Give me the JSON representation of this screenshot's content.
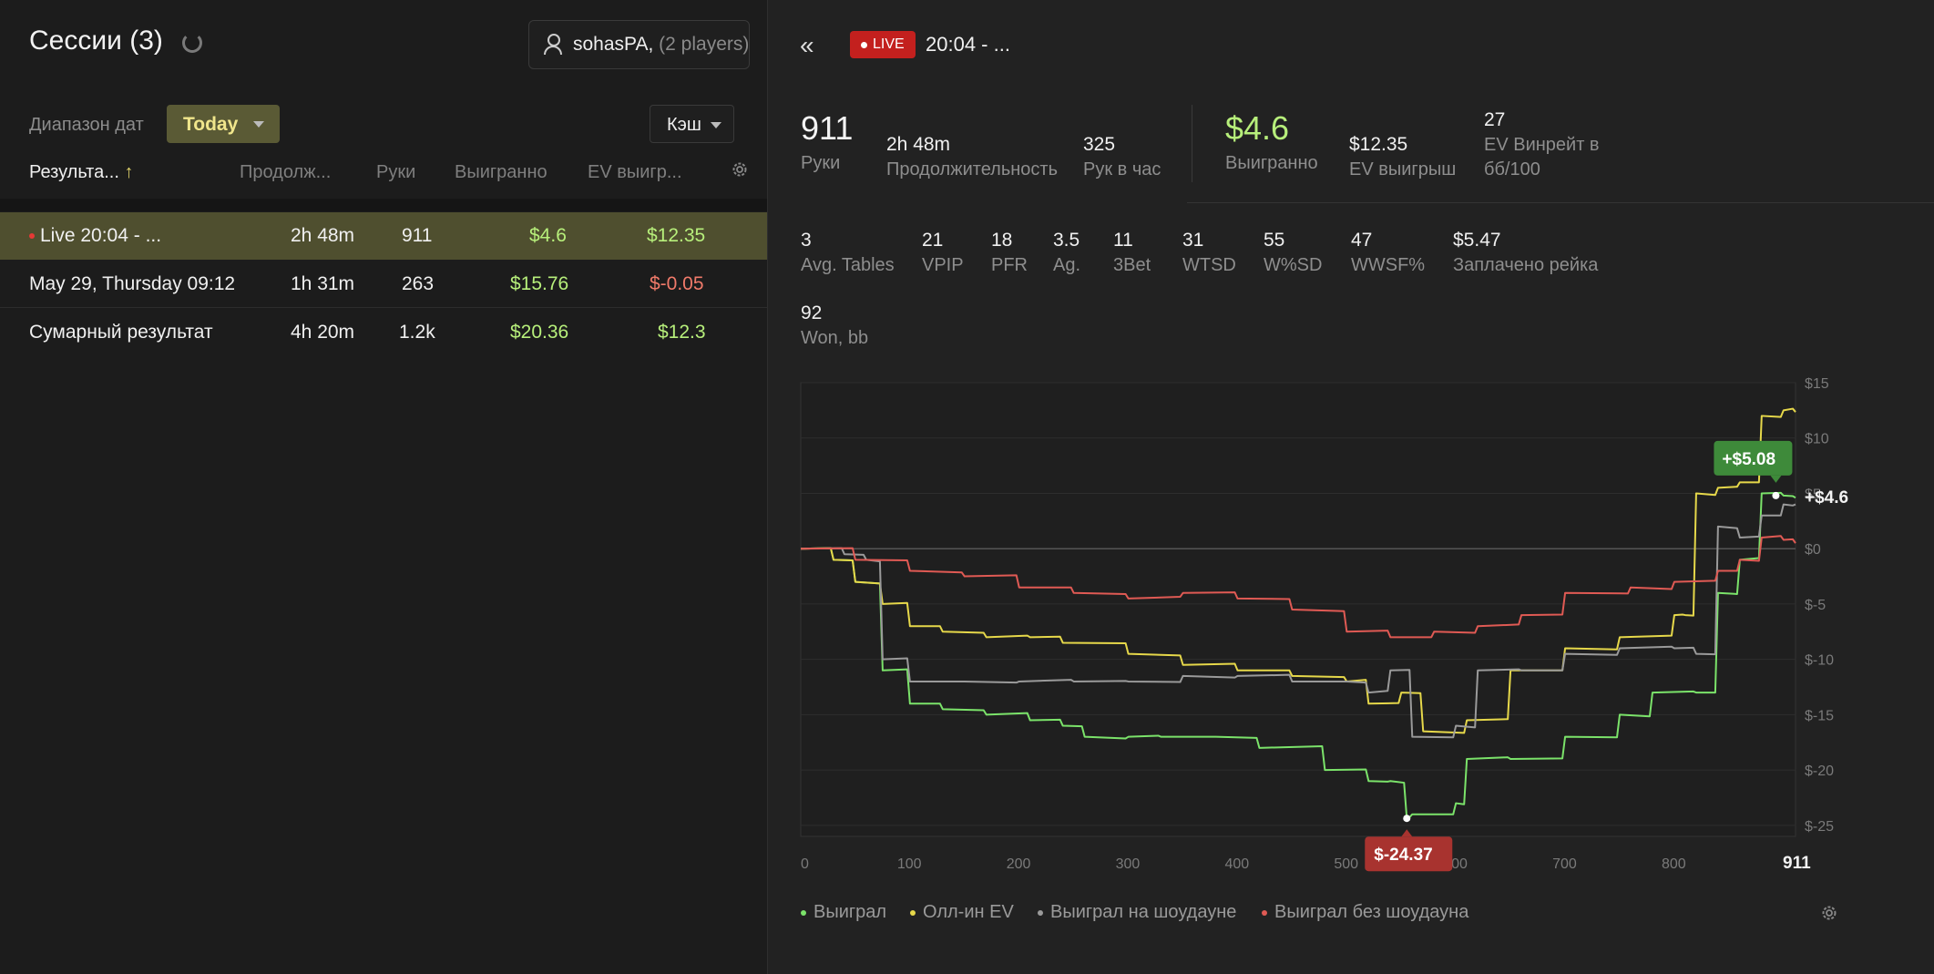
{
  "sessions": {
    "title": "Сессии (3)",
    "player": {
      "name": "sohasPA",
      "count": "(2 players)"
    },
    "range_label": "Диапазон дат",
    "range_value": "Today",
    "game_type": "Кэш",
    "columns": [
      "Результа...",
      "Продолж...",
      "Руки",
      "Выигранно",
      "EV выигр..."
    ],
    "sort_arrow": "↑",
    "rows": [
      {
        "name": "Live 20:04 - ...",
        "duration": "2h 48m",
        "hands": "911",
        "won": "$4.6",
        "ev": "$12.35"
      },
      {
        "name": "May 29, Thursday 09:12",
        "duration": "1h 31m",
        "hands": "263",
        "won": "$15.76",
        "ev": "$-0.05"
      },
      {
        "name": "Сумарный результат",
        "duration": "4h 20m",
        "hands": "1.2k",
        "won": "$20.36",
        "ev": "$12.3"
      }
    ]
  },
  "detail": {
    "back": "«",
    "live_badge": "LIVE",
    "title": "20:04 - ...",
    "stats_top": {
      "hands": {
        "value": "911",
        "label": "Руки"
      },
      "duration": {
        "value": "2h 48m",
        "label": "Продолжительность"
      },
      "hands_per_hour": {
        "value": "325",
        "label": "Рук в час"
      },
      "won": {
        "value": "$4.6",
        "label": "Выигранно"
      },
      "ev_won": {
        "value": "$12.35",
        "label": "EV выигрыш"
      },
      "ev_winrate": {
        "value": "27",
        "label1": "EV Винрейт в",
        "label2": "бб/100"
      }
    },
    "stats_row": [
      {
        "value": "3",
        "label": "Avg. Tables"
      },
      {
        "value": "21",
        "label": "VPIP"
      },
      {
        "value": "18",
        "label": "PFR"
      },
      {
        "value": "3.5",
        "label": "Ag."
      },
      {
        "value": "11",
        "label": "3Bet"
      },
      {
        "value": "31",
        "label": "WTSD"
      },
      {
        "value": "55",
        "label": "W%SD"
      },
      {
        "value": "47",
        "label": "WWSF%"
      },
      {
        "value": "$5.47",
        "label": "Заплачено рейка"
      }
    ],
    "won_bb": {
      "value": "92",
      "label": "Won, bb"
    },
    "legend": [
      "Выиграл",
      "Олл-ин EV",
      "Выиграл на шоудауне",
      "Выиграл без шоудауна"
    ]
  },
  "colors": {
    "green": "#7be36a",
    "yellow": "#e6d84a",
    "gray": "#9a9a9a",
    "red": "#e05a54"
  },
  "chart_data": {
    "type": "line",
    "xlim": [
      0,
      911
    ],
    "ylim": [
      -26,
      15
    ],
    "x_ticks": [
      "0",
      "100",
      "200",
      "300",
      "400",
      "500",
      "600",
      "700",
      "800",
      "911"
    ],
    "y_ticks": [
      "$15",
      "$10",
      "$5",
      "$0",
      "$-5",
      "$-10",
      "$-15",
      "$-20",
      "$-25"
    ],
    "callouts": {
      "max": "+$5.08",
      "end": "+$4.6",
      "min": "$-24.37"
    },
    "series": [
      {
        "name": "Выиграл",
        "color": "#7be36a",
        "x": [
          0,
          30,
          50,
          75,
          100,
          130,
          170,
          210,
          240,
          260,
          300,
          330,
          380,
          420,
          480,
          520,
          540,
          555,
          560,
          600,
          610,
          650,
          700,
          750,
          780,
          820,
          840,
          860,
          880,
          900,
          911
        ],
        "y": [
          0,
          -1,
          -3,
          -11,
          -14,
          -14.5,
          -15,
          -15.5,
          -16,
          -17,
          -17,
          -17,
          -17,
          -18,
          -20,
          -21,
          -21,
          -24.37,
          -24,
          -23,
          -19,
          -19,
          -17,
          -15,
          -13,
          -13,
          -4,
          -1,
          5,
          4.8,
          4.6
        ]
      },
      {
        "name": "Олл-ин EV",
        "color": "#e6d84a",
        "x": [
          0,
          30,
          50,
          75,
          100,
          130,
          170,
          210,
          240,
          300,
          350,
          400,
          450,
          500,
          520,
          550,
          570,
          610,
          650,
          700,
          750,
          800,
          810,
          820,
          840,
          860,
          880,
          900,
          911
        ],
        "y": [
          0,
          -1,
          -3,
          -5,
          -7,
          -7.5,
          -8,
          -8,
          -8.5,
          -9.5,
          -10.5,
          -11,
          -11.5,
          -12,
          -14,
          -13,
          -16.5,
          -15.5,
          -11,
          -9,
          -8,
          -6,
          -6,
          5,
          5.5,
          6,
          12,
          12.5,
          12.35
        ]
      },
      {
        "name": "Выиграл на шоудауне",
        "color": "#9a9a9a",
        "x": [
          0,
          40,
          60,
          75,
          100,
          150,
          200,
          250,
          300,
          350,
          400,
          450,
          500,
          520,
          540,
          560,
          600,
          620,
          660,
          700,
          750,
          800,
          820,
          840,
          860,
          880,
          900,
          911
        ],
        "y": [
          0,
          -0.5,
          -1,
          -10,
          -12,
          -12,
          -12,
          -12,
          -12,
          -11.5,
          -11.5,
          -12,
          -12,
          -13,
          -11,
          -17,
          -16,
          -11,
          -11,
          -9.5,
          -9,
          -9,
          -9.5,
          2,
          1,
          3,
          4,
          4
        ]
      },
      {
        "name": "Выиграл без шоудауна",
        "color": "#e05a54",
        "x": [
          0,
          50,
          100,
          150,
          200,
          250,
          300,
          350,
          400,
          450,
          500,
          540,
          580,
          620,
          660,
          700,
          760,
          800,
          840,
          860,
          880,
          900,
          911
        ],
        "y": [
          0,
          -1,
          -2,
          -2.5,
          -3.5,
          -4,
          -4.5,
          -4,
          -4.5,
          -5.5,
          -7.5,
          -8,
          -7.5,
          -7,
          -6,
          -4,
          -3.5,
          -3,
          -2,
          -1,
          1,
          0.8,
          0.5
        ]
      }
    ]
  }
}
